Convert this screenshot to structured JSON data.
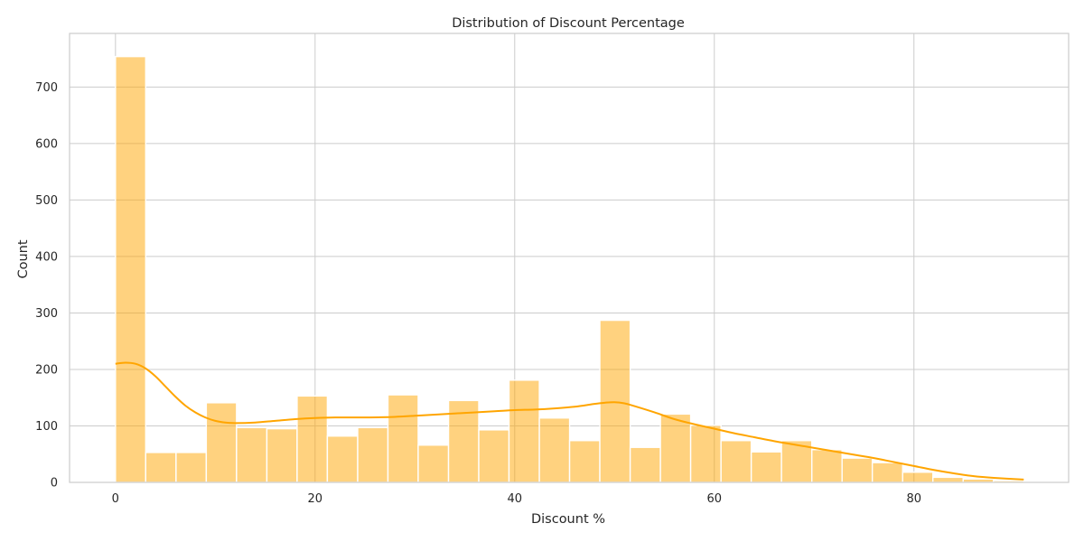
{
  "chart_data": {
    "type": "bar",
    "title": "Distribution of Discount Percentage",
    "xlabel": "Discount %",
    "ylabel": "Count",
    "xlim": [
      -4.6,
      95.5
    ],
    "ylim": [
      0,
      795
    ],
    "xticks": [
      0,
      20,
      40,
      60,
      80
    ],
    "yticks": [
      0,
      100,
      200,
      300,
      400,
      500,
      600,
      700
    ],
    "grid": true,
    "bar_color": "#ffa500",
    "bin_edges": [
      0,
      3.03,
      6.07,
      9.1,
      12.13,
      15.17,
      18.2,
      21.23,
      24.27,
      27.3,
      30.33,
      33.37,
      36.4,
      39.43,
      42.47,
      45.5,
      48.53,
      51.57,
      54.6,
      57.63,
      60.67,
      63.7,
      66.73,
      69.77,
      72.8,
      75.83,
      78.87,
      81.9,
      84.93,
      87.97,
      91.0
    ],
    "values": [
      754,
      53,
      53,
      141,
      97,
      95,
      153,
      82,
      97,
      155,
      66,
      145,
      93,
      181,
      114,
      74,
      287,
      62,
      121,
      101,
      74,
      54,
      74,
      58,
      43,
      35,
      18,
      9,
      6,
      3
    ],
    "kde": {
      "x": [
        0,
        1,
        2,
        3,
        4,
        5,
        6,
        7,
        8,
        9,
        10,
        11,
        12,
        14,
        16,
        18,
        20,
        22,
        25,
        28,
        30,
        32,
        35,
        38,
        40,
        42,
        44,
        46,
        48,
        49,
        50,
        51,
        52,
        54,
        56,
        58,
        60,
        62,
        64,
        66,
        68,
        70,
        72,
        74,
        76,
        78,
        80,
        82,
        84,
        86,
        88,
        91
      ],
      "y": [
        210,
        212,
        210,
        202,
        188,
        170,
        152,
        136,
        124,
        115,
        109,
        106,
        105,
        106,
        109,
        112,
        114,
        115,
        115,
        116,
        118,
        120,
        123,
        126,
        128,
        129,
        131,
        134,
        139,
        141,
        142,
        140,
        135,
        124,
        112,
        103,
        95,
        87,
        80,
        73,
        67,
        61,
        55,
        49,
        43,
        36,
        29,
        22,
        16,
        11,
        8,
        5
      ]
    }
  }
}
